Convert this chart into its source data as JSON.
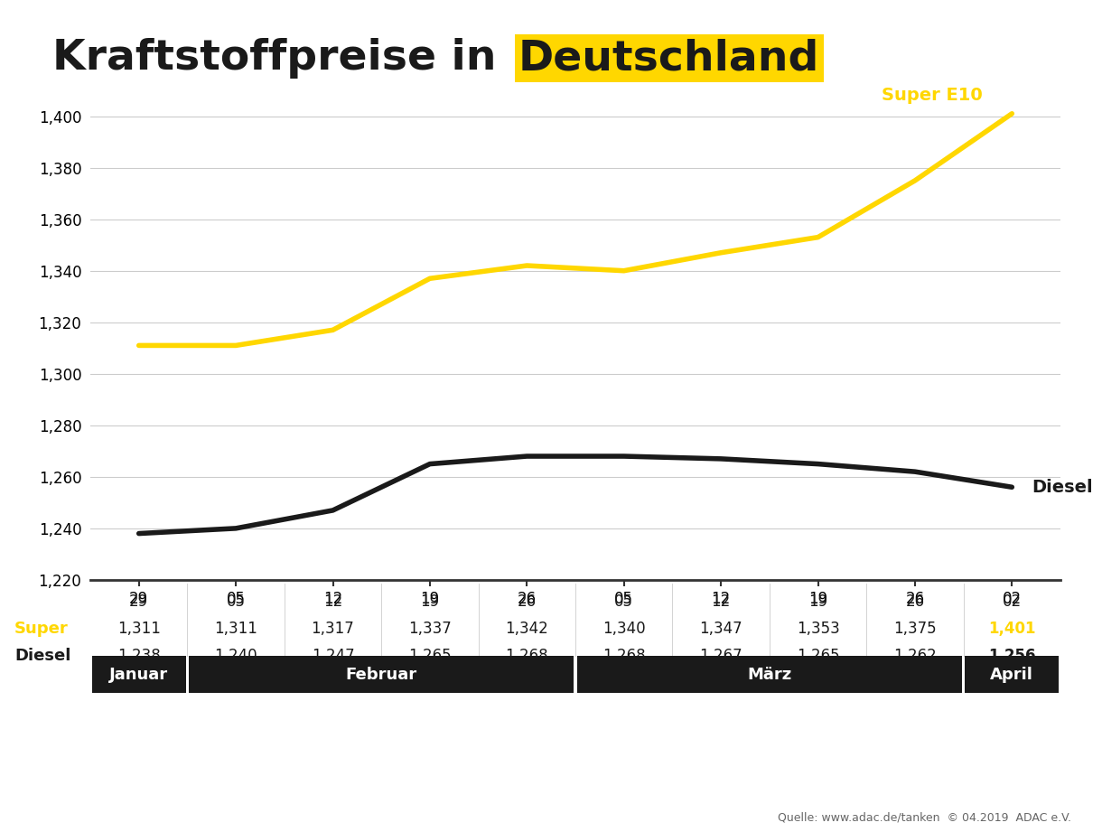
{
  "title_plain": "Kraftstoffpreise in ",
  "title_highlight": "Deutschland",
  "title_highlight_bg": "#FFD700",
  "x_labels": [
    "29",
    "05",
    "12",
    "19",
    "26",
    "05",
    "12",
    "19",
    "26",
    "02"
  ],
  "super_values": [
    1.311,
    1.311,
    1.317,
    1.337,
    1.342,
    1.34,
    1.347,
    1.353,
    1.375,
    1.401
  ],
  "diesel_values": [
    1.238,
    1.24,
    1.247,
    1.265,
    1.268,
    1.268,
    1.267,
    1.265,
    1.262,
    1.256
  ],
  "super_color": "#FFD700",
  "diesel_color": "#1a1a1a",
  "ylim_min": 1.22,
  "ylim_max": 1.41,
  "yticks": [
    1.22,
    1.24,
    1.26,
    1.28,
    1.3,
    1.32,
    1.34,
    1.36,
    1.38,
    1.4
  ],
  "super_label": "Super E10",
  "diesel_label": "Diesel",
  "line_width": 4.0,
  "super_display": [
    "1,311",
    "1,311",
    "1,317",
    "1,337",
    "1,342",
    "1,340",
    "1,347",
    "1,353",
    "1,375",
    "1,401"
  ],
  "diesel_display": [
    "1,238",
    "1,240",
    "1,247",
    "1,265",
    "1,268",
    "1,268",
    "1,267",
    "1,265",
    "1,262",
    "1,256"
  ],
  "bg_color": "#ffffff",
  "grid_color": "#cccccc",
  "source_text": "Quelle: www.adac.de/tanken  © 04.2019  ADAC e.V.",
  "month_bar_color": "#1a1a1a",
  "month_bar_text_color": "#ffffff",
  "title_fontsize": 34,
  "axis_fontsize": 12,
  "table_fontsize": 12,
  "month_fontsize": 13,
  "super_color_label": "#FFD700",
  "diesel_color_label": "#1a1a1a"
}
